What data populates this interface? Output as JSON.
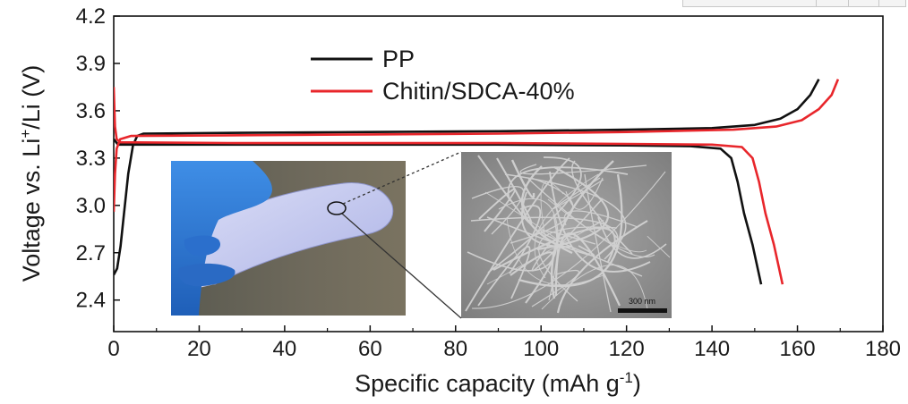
{
  "chart_data": {
    "type": "line",
    "xlabel": "Specific capacity (mAh g",
    "xlabel_sup": "-1",
    "xlabel_end": ")",
    "ylabel_pre": "Voltage vs. Li",
    "ylabel_sup": "+",
    "ylabel_post": "/Li (V)",
    "xlim": [
      0,
      180
    ],
    "ylim": [
      2.2,
      4.2
    ],
    "xticks": [
      0,
      20,
      40,
      60,
      80,
      100,
      120,
      140,
      160,
      180
    ],
    "yticks": [
      2.4,
      2.7,
      3.0,
      3.3,
      3.6,
      3.9,
      4.2
    ],
    "ytick_labels": [
      "2.4",
      "2.7",
      "3.0",
      "3.3",
      "3.6",
      "3.9",
      "4.2"
    ],
    "legend_position": "top-left",
    "series": [
      {
        "name": "PP",
        "color": "#111111",
        "charge": [
          [
            0,
            2.56
          ],
          [
            0.8,
            2.6
          ],
          [
            1.6,
            2.74
          ],
          [
            2.4,
            2.95
          ],
          [
            3.4,
            3.2
          ],
          [
            4.5,
            3.38
          ],
          [
            5.5,
            3.44
          ],
          [
            7,
            3.455
          ],
          [
            30,
            3.46
          ],
          [
            60,
            3.465
          ],
          [
            90,
            3.47
          ],
          [
            120,
            3.48
          ],
          [
            140,
            3.49
          ],
          [
            150,
            3.51
          ],
          [
            156,
            3.55
          ],
          [
            160,
            3.61
          ],
          [
            163,
            3.7
          ],
          [
            165,
            3.8
          ]
        ],
        "discharge": [
          [
            0,
            3.42
          ],
          [
            1,
            3.385
          ],
          [
            30,
            3.385
          ],
          [
            60,
            3.385
          ],
          [
            90,
            3.385
          ],
          [
            120,
            3.38
          ],
          [
            135,
            3.375
          ],
          [
            142,
            3.36
          ],
          [
            144.5,
            3.3
          ],
          [
            146,
            3.15
          ],
          [
            147.5,
            2.95
          ],
          [
            149.5,
            2.75
          ],
          [
            151.5,
            2.5
          ]
        ]
      },
      {
        "name": "Chitin/SDCA-40%",
        "color": "#e8262b",
        "charge": [
          [
            0,
            2.96
          ],
          [
            0.3,
            3.2
          ],
          [
            0.7,
            3.36
          ],
          [
            1.5,
            3.42
          ],
          [
            4,
            3.44
          ],
          [
            30,
            3.445
          ],
          [
            60,
            3.45
          ],
          [
            90,
            3.455
          ],
          [
            120,
            3.465
          ],
          [
            145,
            3.48
          ],
          [
            155,
            3.5
          ],
          [
            161,
            3.54
          ],
          [
            165,
            3.61
          ],
          [
            168,
            3.7
          ],
          [
            169.5,
            3.8
          ]
        ],
        "discharge": [
          [
            0,
            3.75
          ],
          [
            0.3,
            3.5
          ],
          [
            0.7,
            3.42
          ],
          [
            1.5,
            3.4
          ],
          [
            30,
            3.395
          ],
          [
            60,
            3.395
          ],
          [
            90,
            3.395
          ],
          [
            120,
            3.39
          ],
          [
            140,
            3.385
          ],
          [
            147,
            3.37
          ],
          [
            149.5,
            3.3
          ],
          [
            151,
            3.15
          ],
          [
            152.5,
            2.95
          ],
          [
            154.5,
            2.75
          ],
          [
            156.5,
            2.5
          ]
        ]
      }
    ],
    "inset_photo_description": "",
    "scale_bar_label": "300 nm"
  }
}
